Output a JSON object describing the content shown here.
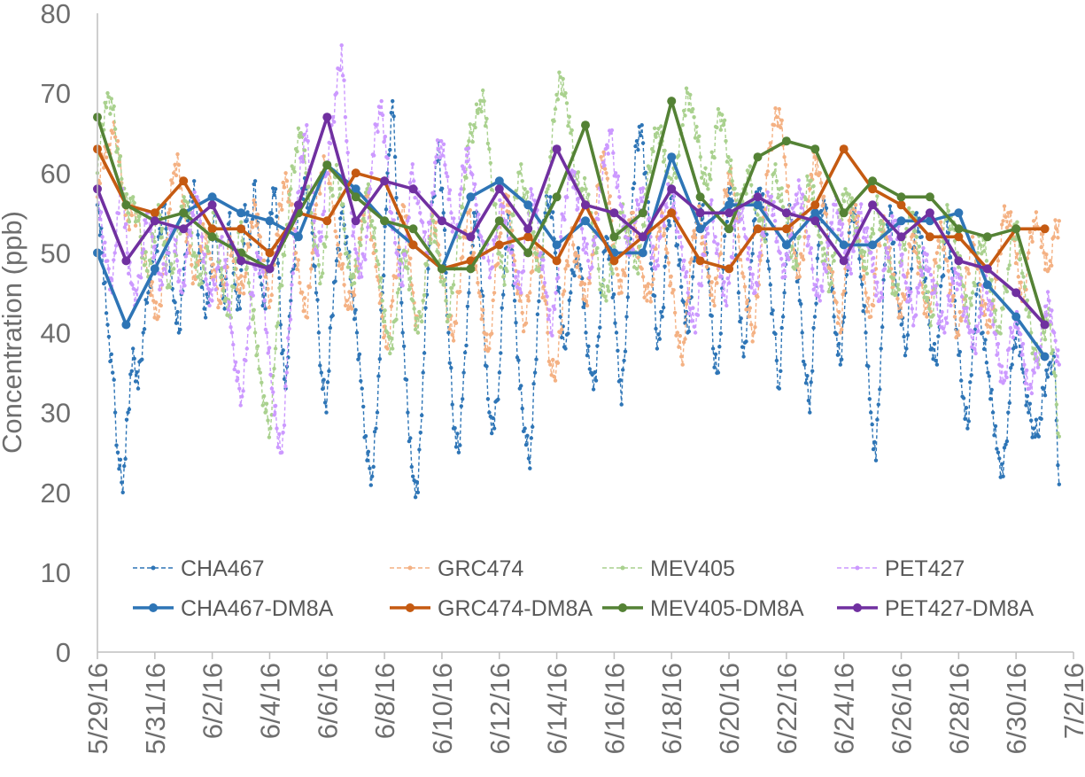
{
  "chart_data": {
    "type": "line",
    "title": "",
    "xlabel": "",
    "ylabel": "Concentration (ppb)",
    "ylim": [
      0,
      80
    ],
    "y_ticks": [
      "0",
      "10",
      "20",
      "30",
      "40",
      "50",
      "60",
      "70",
      "80"
    ],
    "x_tick_labels": [
      "5/29/16",
      "5/31/16",
      "6/2/16",
      "6/4/16",
      "6/6/16",
      "6/8/16",
      "6/10/16",
      "6/12/16",
      "6/14/16",
      "6/16/16",
      "6/18/16",
      "6/20/16",
      "6/22/16",
      "6/24/16",
      "6/26/16",
      "6/28/16",
      "6/30/16",
      "7/2/16"
    ],
    "x_range_days": [
      0,
      34
    ],
    "x_unit": "days since 5/29/16",
    "legend_position": "bottom-center",
    "series": [
      {
        "name": "CHA467",
        "color": "#2e75b6",
        "style": "hourly-dashed",
        "anchor_values": [
          56,
          50,
          41,
          35,
          25,
          20,
          30,
          38,
          33,
          40,
          45,
          48,
          52,
          56,
          50,
          44,
          40,
          48,
          55,
          59,
          50,
          43,
          45,
          55,
          48,
          43,
          55,
          46,
          43,
          56,
          51,
          59,
          47,
          43,
          55,
          58,
          41,
          33,
          44,
          52,
          57,
          58,
          55,
          45,
          35,
          30,
          42,
          49,
          55,
          52,
          45,
          40,
          33,
          24,
          22,
          30,
          45,
          60,
          69,
          55,
          40,
          30,
          22,
          20,
          35,
          48,
          57,
          64,
          55,
          40,
          28,
          25,
          35,
          45,
          55,
          52,
          40,
          30,
          28,
          35,
          48,
          55,
          44,
          33,
          28,
          23,
          35,
          48,
          55,
          57,
          50,
          42,
          38,
          45,
          50,
          48,
          40,
          35,
          34,
          45,
          52,
          48,
          40,
          31,
          42,
          55,
          64,
          66,
          57,
          48,
          38,
          42,
          53,
          57,
          51,
          44,
          40,
          47,
          55,
          56,
          48,
          38,
          35,
          48,
          58,
          56,
          45,
          37,
          44,
          54,
          58,
          55,
          48,
          40,
          33,
          45,
          56,
          52,
          44,
          36,
          30,
          42,
          55,
          56,
          48,
          40,
          36,
          45,
          54,
          56,
          47,
          40,
          30,
          24,
          38,
          52,
          55,
          46,
          41,
          38,
          48,
          55,
          52,
          44,
          38,
          36,
          47,
          54,
          48,
          40,
          32,
          28,
          38,
          46,
          40,
          35,
          30,
          25,
          22,
          30,
          38,
          40,
          35,
          30,
          28,
          27,
          33,
          36,
          37,
          21
        ]
      },
      {
        "name": "GRC474",
        "color": "#f4b183",
        "style": "hourly-dashed",
        "anchor_values": [
          57,
          62,
          63,
          65,
          64,
          57,
          54,
          56,
          54,
          50,
          47,
          44,
          42,
          48,
          55,
          60,
          61,
          56,
          50,
          47,
          49,
          53,
          50,
          47,
          44,
          46,
          52,
          49,
          45,
          47,
          52,
          56,
          52,
          47,
          44,
          50,
          56,
          60,
          56,
          50,
          45,
          42,
          48,
          56,
          60,
          61,
          58,
          52,
          48,
          44,
          43,
          48,
          54,
          57,
          52,
          47,
          42,
          38,
          44,
          50,
          56,
          52,
          45,
          40,
          44,
          50,
          55,
          51,
          46,
          42,
          39,
          45,
          52,
          55,
          50,
          45,
          40,
          38,
          45,
          52,
          57,
          55,
          49,
          44,
          41,
          45,
          52,
          48,
          44,
          36,
          34,
          40,
          48,
          52,
          50,
          46,
          44,
          48,
          55,
          62,
          60,
          54,
          48,
          45,
          50,
          55,
          52,
          48,
          44,
          46,
          52,
          55,
          50,
          45,
          40,
          36,
          44,
          52,
          55,
          52,
          47,
          44,
          48,
          55,
          60,
          58,
          52,
          47,
          42,
          40,
          46,
          55,
          63,
          66,
          68,
          62,
          55,
          50,
          47,
          52,
          58,
          62,
          60,
          55,
          48,
          44,
          40,
          48,
          55,
          56,
          50,
          45,
          42,
          48,
          54,
          52,
          48,
          45,
          42,
          47,
          52,
          50,
          46,
          42,
          45,
          50,
          53,
          49,
          44,
          40,
          42,
          48,
          52,
          48,
          44,
          40,
          43,
          49,
          54,
          55,
          52,
          47,
          44,
          50,
          54,
          53,
          50,
          48,
          52,
          54
        ]
      },
      {
        "name": "MEV405",
        "color": "#a9d18e",
        "style": "hourly-dashed",
        "anchor_values": [
          60,
          66,
          70,
          68,
          63,
          58,
          55,
          57,
          54,
          50,
          47,
          52,
          56,
          51,
          46,
          48,
          53,
          57,
          55,
          50,
          46,
          48,
          52,
          55,
          49,
          44,
          42,
          48,
          53,
          50,
          45,
          40,
          35,
          30,
          28,
          38,
          46,
          52,
          58,
          63,
          65,
          60,
          55,
          50,
          47,
          52,
          58,
          61,
          56,
          50,
          46,
          48,
          53,
          58,
          54,
          49,
          44,
          40,
          38,
          45,
          50,
          48,
          44,
          40,
          44,
          50,
          54,
          50,
          46,
          42,
          46,
          52,
          58,
          64,
          66,
          68,
          69,
          63,
          56,
          50,
          46,
          51,
          57,
          60,
          58,
          54,
          50,
          48,
          54,
          62,
          68,
          72,
          70,
          65,
          60,
          57,
          58,
          55,
          50,
          46,
          44,
          48,
          52,
          55,
          53,
          50,
          48,
          52,
          58,
          63,
          65,
          64,
          60,
          58,
          62,
          66,
          70,
          68,
          64,
          60,
          58,
          62,
          68,
          66,
          62,
          58,
          55,
          58,
          60,
          57,
          54,
          52,
          56,
          60,
          58,
          55,
          52,
          48,
          52,
          57,
          59,
          56,
          52,
          49,
          46,
          50,
          55,
          58,
          56,
          53,
          50,
          48,
          52,
          56,
          54,
          50,
          47,
          45,
          49,
          53,
          55,
          52,
          48,
          44,
          42,
          46,
          52,
          56,
          53,
          50,
          46,
          42,
          45,
          50,
          52,
          48,
          44,
          40,
          43,
          48,
          53,
          52,
          47,
          42,
          38,
          36,
          40,
          43,
          35,
          27
        ]
      },
      {
        "name": "PET427",
        "color": "#cc99ff",
        "style": "hourly-dashed",
        "anchor_values": [
          58,
          52,
          49,
          45,
          55,
          58,
          50,
          46,
          44,
          50,
          55,
          52,
          48,
          46,
          50,
          53,
          49,
          45,
          50,
          55,
          57,
          52,
          46,
          44,
          48,
          52,
          46,
          40,
          34,
          32,
          38,
          45,
          50,
          48,
          40,
          33,
          28,
          25,
          35,
          46,
          55,
          62,
          66,
          58,
          50,
          52,
          60,
          66,
          70,
          76,
          64,
          55,
          50,
          47,
          52,
          60,
          66,
          69,
          62,
          55,
          50,
          46,
          52,
          60,
          58,
          54,
          50,
          56,
          62,
          64,
          60,
          55,
          52,
          58,
          63,
          60,
          56,
          52,
          50,
          48,
          52,
          56,
          54,
          50,
          47,
          45,
          52,
          58,
          55,
          50,
          45,
          40,
          45,
          52,
          57,
          60,
          58,
          54,
          50,
          48,
          52,
          58,
          63,
          65,
          60,
          56,
          52,
          50,
          54,
          58,
          55,
          52,
          48,
          52,
          56,
          58,
          55,
          52,
          47,
          43,
          40,
          46,
          52,
          56,
          52,
          47,
          44,
          48,
          54,
          56,
          52,
          48,
          45,
          50,
          55,
          57,
          54,
          50,
          47,
          52,
          56,
          58,
          55,
          50,
          46,
          44,
          48,
          53,
          56,
          54,
          50,
          48,
          52,
          55,
          53,
          50,
          47,
          44,
          48,
          52,
          54,
          51,
          47,
          44,
          42,
          46,
          50,
          48,
          45,
          42,
          40,
          44,
          48,
          46,
          43,
          40,
          38,
          42,
          46,
          44,
          40,
          36,
          34,
          38,
          42,
          40,
          36,
          33,
          35,
          38,
          42,
          44,
          40,
          36
        ]
      },
      {
        "name": "CHA467-DM8A",
        "color": "#2e75b6",
        "style": "daily-solid",
        "x": [
          0,
          1,
          2,
          3,
          4,
          5,
          6,
          7,
          8,
          9,
          10,
          11,
          12,
          13,
          14,
          15,
          16,
          17,
          18,
          19,
          20,
          21,
          22,
          23,
          24,
          25,
          26,
          27,
          28,
          29,
          30,
          31,
          32,
          33
        ],
        "values": [
          50,
          41,
          48,
          55,
          57,
          55,
          54,
          52,
          61,
          58,
          54,
          51,
          48,
          57,
          59,
          56,
          51,
          54,
          50,
          50,
          62,
          53,
          56,
          56,
          51,
          55,
          51,
          51,
          54,
          54,
          55,
          46,
          42,
          37
        ]
      },
      {
        "name": "GRC474-DM8A",
        "color": "#c55a11",
        "style": "daily-solid",
        "x": [
          0,
          1,
          2,
          3,
          4,
          5,
          6,
          7,
          8,
          9,
          10,
          11,
          12,
          13,
          14,
          15,
          16,
          17,
          18,
          19,
          20,
          21,
          22,
          23,
          24,
          25,
          26,
          27,
          28,
          29,
          30,
          31,
          32,
          33
        ],
        "values": [
          63,
          56,
          55,
          59,
          53,
          53,
          50,
          55,
          54,
          60,
          59,
          51,
          48,
          49,
          51,
          52,
          49,
          56,
          49,
          52,
          55,
          49,
          48,
          53,
          53,
          56,
          63,
          58,
          56,
          52,
          52,
          48,
          53,
          53
        ]
      },
      {
        "name": "MEV405-DM8A",
        "color": "#548235",
        "style": "daily-solid",
        "x": [
          0,
          1,
          2,
          3,
          4,
          5,
          6,
          7,
          8,
          9,
          10,
          11,
          12,
          13,
          14,
          15,
          16,
          17,
          18,
          19,
          20,
          21,
          22,
          23,
          24,
          25,
          26,
          27,
          28,
          29,
          30,
          31,
          32,
          33
        ],
        "values": [
          67,
          56,
          54,
          55,
          52,
          50,
          48,
          55,
          61,
          57,
          54,
          53,
          48,
          48,
          54,
          50,
          57,
          66,
          52,
          55,
          69,
          57,
          53,
          62,
          64,
          63,
          55,
          59,
          57,
          57,
          53,
          52,
          53,
          41
        ]
      },
      {
        "name": "PET427-DM8A",
        "color": "#7030a0",
        "style": "daily-solid",
        "x": [
          0,
          1,
          2,
          3,
          4,
          5,
          6,
          7,
          8,
          9,
          10,
          11,
          12,
          13,
          14,
          15,
          16,
          17,
          18,
          19,
          20,
          21,
          22,
          23,
          24,
          25,
          26,
          27,
          28,
          29,
          30,
          31,
          32,
          33
        ],
        "values": [
          58,
          49,
          54,
          53,
          56,
          49,
          48,
          56,
          67,
          54,
          59,
          58,
          54,
          52,
          58,
          53,
          63,
          56,
          55,
          52,
          58,
          55,
          55,
          57,
          55,
          54,
          49,
          56,
          52,
          55,
          49,
          48,
          45,
          41
        ]
      }
    ]
  }
}
